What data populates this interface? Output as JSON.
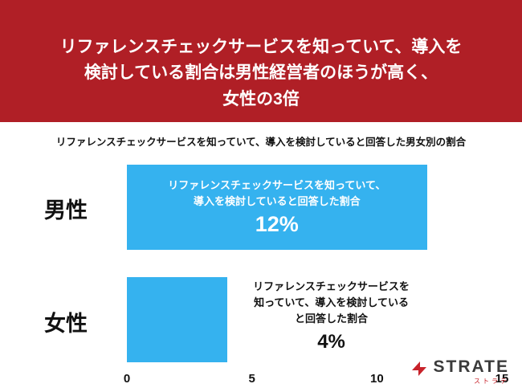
{
  "header": {
    "title": "リファレンスチェックサービスを知っていて、導入を\n検討している割合は男性経営者のほうが高く、\n女性の3倍"
  },
  "subtitle": "リファレンスチェックサービスを知っていて、導入を検討していると回答した男女別の割合",
  "chart_data": {
    "type": "bar",
    "orientation": "horizontal",
    "title": "リファレンスチェックサービスを知っていて、導入を検討していると回答した男女別の割合",
    "categories": [
      "男性",
      "女性"
    ],
    "values": [
      12,
      4
    ],
    "value_labels": [
      "12%",
      "4%"
    ],
    "xlim": [
      0,
      15
    ],
    "ticks": [
      0,
      5,
      10,
      15
    ],
    "grid": false,
    "legend": "none",
    "bar_color": "#35b2ef",
    "annotations": {
      "male_text": "リファレンスチェックサービスを知っていて、\n導入を検討していると回答した割合",
      "male_pct": "12%",
      "female_text": "リファレンスチェックサービスを\n知っていて、導入を検討している\nと回答した割合",
      "female_pct": "4%"
    }
  },
  "colors": {
    "header_bg": "#b01f26",
    "header_text": "#ffffff",
    "bar": "#35b2ef",
    "logo_red": "#c8222a"
  },
  "logo": {
    "name": "STRATE",
    "sub": "ストラテ"
  }
}
